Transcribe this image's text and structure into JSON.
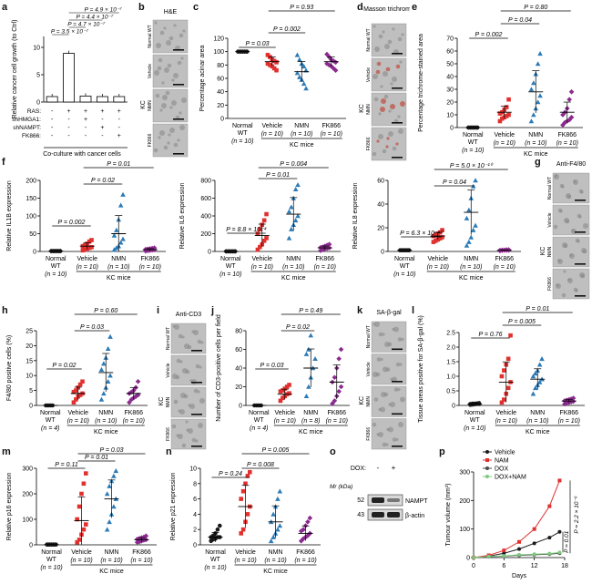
{
  "colors": {
    "normal": "#1a1a1a",
    "vehicle": "#e0312f",
    "nmn": "#2c7bb6",
    "fk866": "#8b2a8e",
    "dox": "#4a4a4a",
    "doxnam": "#7fc97f",
    "tissue": "#bfbfbf",
    "trichrome": "#c0392b"
  },
  "common": {
    "normal_wt": "Normal WT",
    "vehicle": "Vehicle",
    "nmn": "NMN",
    "fk866": "FK866",
    "kc_mice": "KC mice",
    "n10": "(n = 10)",
    "n4": "(n = 4)",
    "n8": "(n = 8)"
  },
  "panels": {
    "a": {
      "letter": "a",
      "ylabel": "Relative cancer cell growth (to Ctrl)",
      "row_labels": [
        "RAS:",
        "shHMGA1:",
        "shNAMPT:",
        "FK866:"
      ],
      "xcaption": "Co-culture with cancer cells",
      "pvals": [
        "P = 4.9 × 10⁻⁷",
        "P = 4.4 × 10⁻⁷",
        "P = 4.7 × 10⁻⁷",
        "P = 3.5 × 10⁻⁷"
      ],
      "yticks": [
        "0",
        "5",
        "10"
      ],
      "marks": [
        [
          "-",
          "-",
          "-",
          "-"
        ],
        [
          "+",
          "-",
          "-",
          "-"
        ],
        [
          "+",
          "+",
          "-",
          "-"
        ],
        [
          "+",
          "-",
          "+",
          "-"
        ],
        [
          "+",
          "-",
          "-",
          "+"
        ]
      ]
    },
    "b": {
      "letter": "b",
      "title": "H&E",
      "side": "KC",
      "rows": [
        "Normal WT",
        "Vehicle",
        "NMN",
        "FK866"
      ]
    },
    "c": {
      "letter": "c",
      "ylabel": "Percentage acinar area",
      "pvals": [
        "P = 0.93",
        "P = 0.002",
        "P = 0.03"
      ],
      "yticks": [
        "0",
        "20",
        "40",
        "60",
        "80",
        "100",
        "120"
      ]
    },
    "d": {
      "letter": "d",
      "title": "Masson trichrome",
      "side": "KC",
      "rows": [
        "Normal WT",
        "Vehicle",
        "NMN",
        "FK866"
      ]
    },
    "e": {
      "letter": "e",
      "ylabel": "Percentage trichrome-stained area",
      "pvals": [
        "P = 0.80",
        "P = 0.04",
        "P = 0.002"
      ],
      "yticks": [
        "0",
        "10",
        "20",
        "30",
        "40",
        "50",
        "60",
        "70"
      ]
    },
    "f1": {
      "letter": "f",
      "ylabel": "Relative IL1B expression",
      "pvals": [
        "P = 0.01",
        "P = 0.02",
        "P = 0.002"
      ],
      "yticks": [
        "0",
        "50",
        "100",
        "150",
        "200"
      ]
    },
    "f2": {
      "ylabel": "Relative IL6 expression",
      "pvals": [
        "P = 0.004",
        "P = 0.01",
        "P = 8.8 × 10⁻⁴"
      ],
      "yticks": [
        "0",
        "200",
        "400",
        "600",
        "800"
      ]
    },
    "f3": {
      "ylabel": "Relative IL8 expression",
      "pvals": [
        "P = 5.0 × 10⁻¹⁰",
        "P = 0.04",
        "P = 6.3 × 10⁻¹⁰"
      ],
      "yticks": [
        "0",
        "20",
        "40",
        "60"
      ]
    },
    "g": {
      "letter": "g",
      "title": "Anti-F4/80",
      "side": "KC",
      "rows": [
        "Normal WT",
        "Vehicle",
        "NMN",
        "FK866"
      ]
    },
    "h": {
      "letter": "h",
      "ylabel": "F4/80 positive cells (%)",
      "pvals": [
        "P = 0.60",
        "P = 0.03",
        "P = 0.02"
      ],
      "yticks": [
        "0",
        "5",
        "10",
        "15",
        "20",
        "25"
      ]
    },
    "i": {
      "letter": "i",
      "title": "Anti-CD3",
      "side": "KC",
      "rows": [
        "Normal WT",
        "Vehicle",
        "NMN",
        "FK866"
      ]
    },
    "j": {
      "letter": "j",
      "ylabel": "Number of CD3-positive cells per field",
      "pvals": [
        "P = 0.49",
        "P = 0.02",
        "P = 0.03"
      ],
      "yticks": [
        "0",
        "20",
        "40",
        "60",
        "80"
      ]
    },
    "k": {
      "letter": "k",
      "title": "SA-β-gal",
      "side": "KC",
      "rows": [
        "Normal WT",
        "Vehicle",
        "NMN",
        "FK866"
      ]
    },
    "l": {
      "letter": "l",
      "ylabel": "Tissue areas positive for SA-β-gal (%)",
      "pvals": [
        "P = 0.01",
        "P = 0.005",
        "P = 0.76"
      ],
      "yticks": [
        "0",
        "0.5",
        "1.0",
        "1.5",
        "2.0",
        "2.5"
      ]
    },
    "m": {
      "letter": "m",
      "ylabel": "Relative p16 expression",
      "pvals": [
        "P = 0.03",
        "P = 0.01",
        "P = 0.11"
      ],
      "yticks": [
        "0",
        "100",
        "200",
        "300"
      ]
    },
    "n": {
      "letter": "n",
      "ylabel": "Relative p21 expression",
      "pvals": [
        "P = 0.005",
        "P = 0.008",
        "P = 0.24"
      ],
      "yticks": [
        "0",
        "2",
        "4",
        "6",
        "8",
        "10"
      ]
    },
    "o": {
      "letter": "o",
      "dox": "DOX:",
      "minus": "-",
      "plus": "+",
      "mr": "Mr (kDa)",
      "m52": "52",
      "m43": "43",
      "nampt": "NAMPT",
      "actin": "β-actin"
    },
    "p": {
      "letter": "p",
      "ylabel": "Tumour volume (mm³)",
      "xlabel": "Days",
      "p_top": "P = 2.2 × 10⁻⁶",
      "p_bot": "P = 0.01",
      "legend": [
        "Vehicle",
        "NAM",
        "DOX",
        "DOX+NAM"
      ],
      "xticks": [
        "0",
        "6",
        "12",
        "18"
      ],
      "yticks": [
        "0",
        "100",
        "200",
        "300"
      ]
    }
  },
  "chart_data": [
    {
      "panel": "a",
      "type": "bar",
      "categories": [
        "-/-/-/-",
        "RAS",
        "RAS+shHMGA1",
        "RAS+shNAMPT",
        "RAS+FK866"
      ],
      "values": [
        1.0,
        8.9,
        1.1,
        1.0,
        1.0
      ],
      "ylim": [
        0,
        12
      ]
    },
    {
      "panel": "c",
      "type": "scatter",
      "categories": [
        "Normal WT",
        "Vehicle",
        "NMN",
        "FK866"
      ],
      "means": [
        100,
        85,
        70,
        85
      ],
      "ylim": [
        0,
        120
      ],
      "points": [
        [
          100,
          100,
          100,
          100,
          100,
          100,
          100,
          100,
          100,
          100
        ],
        [
          95,
          92,
          88,
          86,
          84,
          82,
          80,
          78,
          75,
          72
        ],
        [
          95,
          88,
          82,
          78,
          72,
          68,
          62,
          58,
          52,
          45
        ],
        [
          96,
          92,
          88,
          86,
          84,
          82,
          80,
          78,
          75,
          72
        ]
      ]
    },
    {
      "panel": "e",
      "type": "scatter",
      "categories": [
        "Normal WT",
        "Vehicle",
        "NMN",
        "FK866"
      ],
      "means": [
        0,
        12,
        28,
        12
      ],
      "ylim": [
        0,
        70
      ],
      "points": [
        [
          0,
          0,
          0,
          0,
          0,
          0,
          0,
          0,
          0,
          0
        ],
        [
          5,
          7,
          8,
          9,
          10,
          11,
          12,
          14,
          16,
          22
        ],
        [
          5,
          10,
          15,
          20,
          25,
          30,
          35,
          42,
          50,
          58
        ],
        [
          2,
          4,
          5,
          6,
          8,
          10,
          12,
          15,
          22,
          28
        ]
      ]
    },
    {
      "panel": "f1",
      "type": "scatter",
      "categories": [
        "Normal WT",
        "Vehicle",
        "NMN",
        "FK866"
      ],
      "means": [
        1,
        15,
        50,
        5
      ],
      "ylim": [
        0,
        200
      ],
      "points": [
        [
          1,
          1,
          1,
          1,
          1,
          1,
          1,
          1,
          1,
          1
        ],
        [
          3,
          5,
          8,
          10,
          12,
          15,
          18,
          22,
          28,
          32
        ],
        [
          5,
          10,
          15,
          25,
          35,
          45,
          60,
          90,
          130,
          160
        ],
        [
          1,
          2,
          3,
          4,
          5,
          6,
          7,
          8,
          9,
          10
        ]
      ]
    },
    {
      "panel": "f2",
      "type": "scatter",
      "categories": [
        "Normal WT",
        "Vehicle",
        "NMN",
        "FK866"
      ],
      "means": [
        1,
        180,
        420,
        40
      ],
      "ylim": [
        0,
        800
      ],
      "points": [
        [
          1,
          1,
          1,
          1,
          1,
          1,
          1,
          1,
          1,
          1
        ],
        [
          20,
          50,
          80,
          120,
          150,
          200,
          250,
          300,
          350,
          420
        ],
        [
          150,
          250,
          300,
          350,
          400,
          450,
          500,
          600,
          700,
          750
        ],
        [
          10,
          20,
          30,
          35,
          40,
          45,
          50,
          60,
          70,
          80
        ]
      ]
    },
    {
      "panel": "f3",
      "type": "scatter",
      "categories": [
        "Normal WT",
        "Vehicle",
        "NMN",
        "FK866"
      ],
      "means": [
        1,
        13,
        33,
        1
      ],
      "ylim": [
        0,
        60
      ],
      "points": [
        [
          1,
          1,
          1,
          1,
          1,
          1,
          1,
          1,
          1,
          1
        ],
        [
          8,
          9,
          10,
          11,
          12,
          13,
          14,
          15,
          16,
          18
        ],
        [
          5,
          8,
          12,
          18,
          22,
          28,
          35,
          45,
          55,
          60
        ],
        [
          0.5,
          0.8,
          1,
          1,
          1,
          1,
          1.2,
          1.2,
          1.5,
          1.5
        ]
      ]
    },
    {
      "panel": "h",
      "type": "scatter",
      "categories": [
        "Normal WT",
        "Vehicle",
        "NMN",
        "FK866"
      ],
      "means": [
        0,
        4,
        11,
        4
      ],
      "ylim": [
        0,
        25
      ],
      "points": [
        [
          0,
          0,
          0,
          0
        ],
        [
          1,
          2,
          3,
          3.5,
          4,
          4.5,
          5,
          6,
          7,
          8
        ],
        [
          2,
          4,
          6,
          8,
          10,
          12,
          14,
          16,
          19,
          23
        ],
        [
          1,
          2,
          2.5,
          3,
          3.5,
          4,
          4.5,
          5,
          6,
          8
        ]
      ]
    },
    {
      "panel": "j",
      "type": "scatter",
      "categories": [
        "Normal WT",
        "Vehicle",
        "NMN",
        "FK866"
      ],
      "means": [
        0,
        12,
        40,
        25
      ],
      "ylim": [
        0,
        80
      ],
      "points": [
        [
          0,
          0,
          0,
          0
        ],
        [
          5,
          8,
          10,
          12,
          13,
          15,
          16,
          18,
          20,
          22
        ],
        [
          10,
          20,
          30,
          40,
          50,
          55,
          60,
          75
        ],
        [
          2,
          5,
          10,
          15,
          20,
          25,
          30,
          40,
          50,
          60
        ]
      ]
    },
    {
      "panel": "l",
      "type": "scatter",
      "categories": [
        "Normal WT",
        "Vehicle",
        "NMN",
        "FK866"
      ],
      "means": [
        0.05,
        0.8,
        0.9,
        0.15
      ],
      "ylim": [
        0,
        2.5
      ],
      "points": [
        [
          0.02,
          0.03,
          0.04,
          0.05,
          0.05,
          0.05,
          0.06,
          0.06,
          0.07,
          0.08
        ],
        [
          0.1,
          0.2,
          0.4,
          0.6,
          0.8,
          1.0,
          1.2,
          1.4,
          1.6,
          2.4
        ],
        [
          0.4,
          0.6,
          0.7,
          0.8,
          0.9,
          1.0,
          1.1,
          1.2,
          1.4,
          1.6
        ],
        [
          0.05,
          0.08,
          0.1,
          0.12,
          0.14,
          0.16,
          0.18,
          0.2,
          0.22,
          0.25
        ]
      ]
    },
    {
      "panel": "m",
      "type": "scatter",
      "categories": [
        "Normal WT",
        "Vehicle",
        "NMN",
        "FK866"
      ],
      "means": [
        1,
        95,
        180,
        20
      ],
      "ylim": [
        0,
        300
      ],
      "points": [
        [
          1,
          1,
          1,
          1,
          1,
          1,
          1,
          1,
          1,
          1
        ],
        [
          10,
          20,
          40,
          60,
          80,
          100,
          150,
          200,
          240,
          280
        ],
        [
          60,
          90,
          120,
          150,
          180,
          200,
          230,
          250,
          270,
          290
        ],
        [
          10,
          12,
          15,
          18,
          20,
          22,
          25,
          28,
          30,
          35
        ]
      ]
    },
    {
      "panel": "n",
      "type": "scatter",
      "categories": [
        "Normal WT",
        "Vehicle",
        "NMN",
        "FK866"
      ],
      "means": [
        1,
        5,
        3,
        1.5
      ],
      "ylim": [
        0,
        10
      ],
      "points": [
        [
          0.5,
          0.7,
          0.8,
          1,
          1,
          1,
          1.2,
          1.5,
          2,
          2.5
        ],
        [
          1.5,
          2,
          3,
          4,
          5,
          6,
          7,
          8,
          9,
          9.5
        ],
        [
          0.5,
          1,
          1.5,
          2,
          2.5,
          3,
          4,
          5,
          6,
          7
        ],
        [
          0.5,
          0.8,
          1,
          1.2,
          1.5,
          1.8,
          2,
          2.5,
          3,
          3.5
        ]
      ]
    },
    {
      "panel": "p",
      "type": "line",
      "x": [
        0,
        3,
        6,
        9,
        12,
        15,
        17
      ],
      "ylim": [
        0,
        300
      ],
      "xlim": [
        0,
        18
      ],
      "series": [
        {
          "name": "Vehicle",
          "values": [
            0,
            5,
            15,
            30,
            50,
            70,
            90
          ]
        },
        {
          "name": "NAM",
          "values": [
            0,
            8,
            25,
            55,
            100,
            180,
            270
          ]
        },
        {
          "name": "DOX",
          "values": [
            0,
            3,
            5,
            8,
            10,
            12,
            15
          ]
        },
        {
          "name": "DOX+NAM",
          "values": [
            0,
            4,
            6,
            10,
            12,
            14,
            18
          ]
        }
      ]
    }
  ]
}
